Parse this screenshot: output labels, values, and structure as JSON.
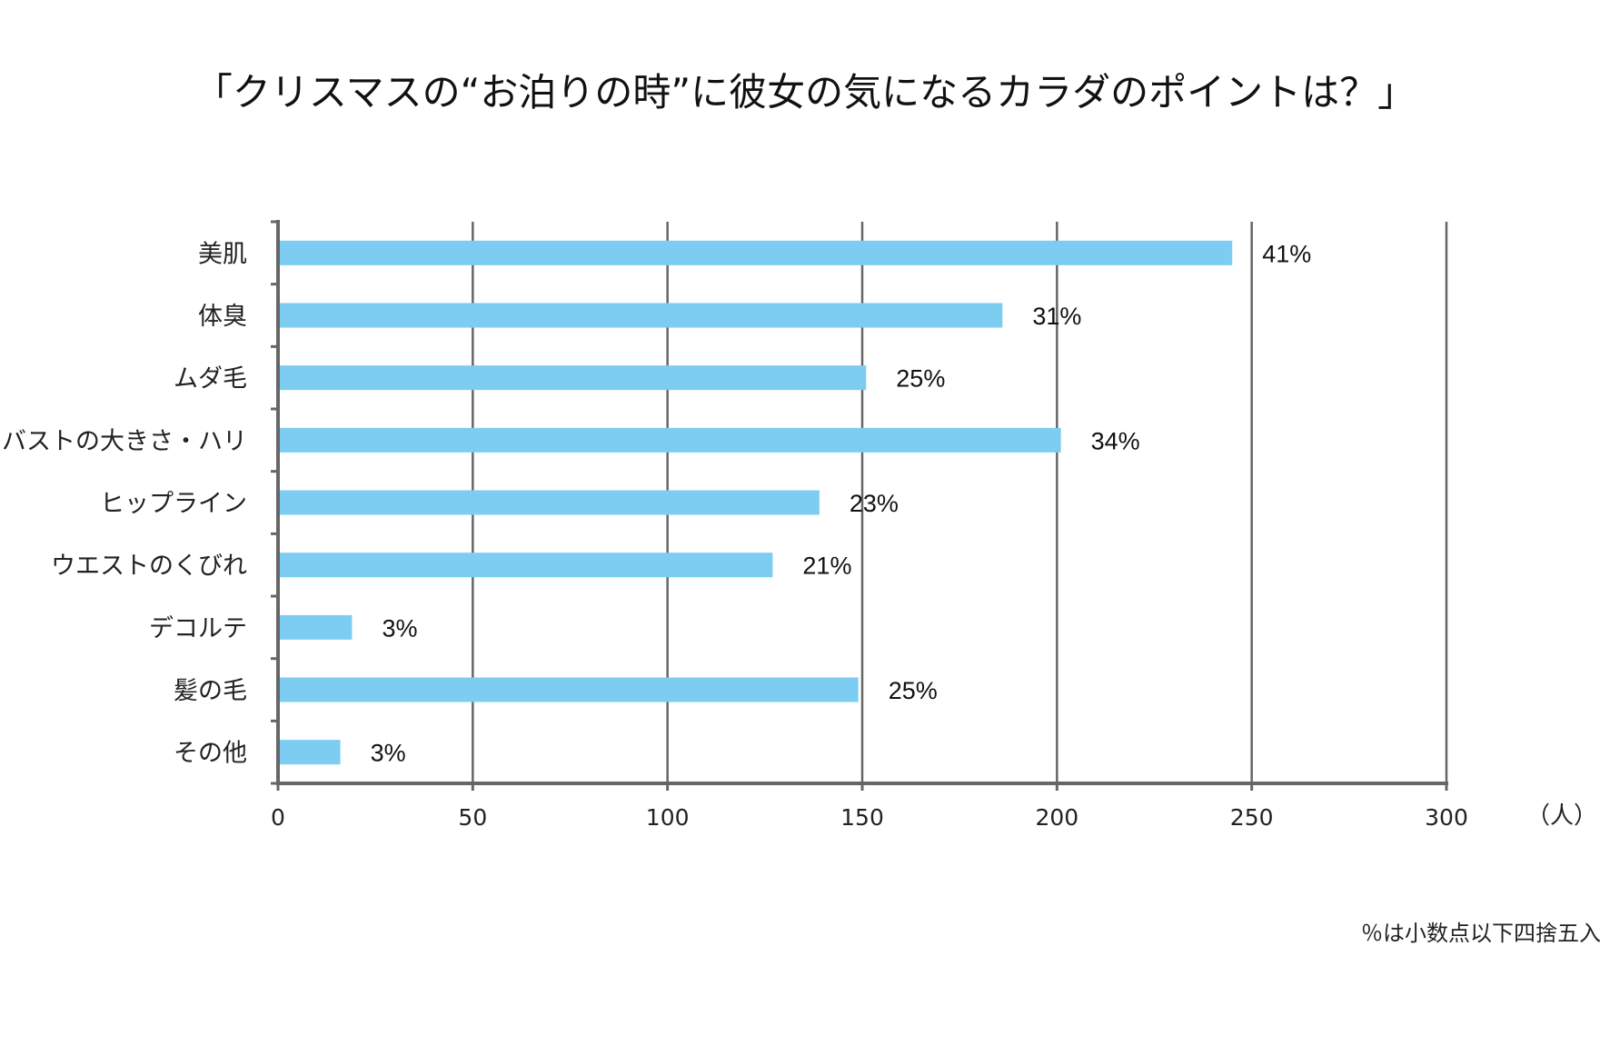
{
  "chart_data": {
    "type": "bar",
    "orientation": "horizontal",
    "title": "「クリスマスの“お泊りの時”に彼女の気になるカラダのポイントは？」",
    "categories": [
      "美肌",
      "体臭",
      "ムダ毛",
      "バストの大きさ・ハリ",
      "ヒップライン",
      "ウエストのくびれ",
      "デコルテ",
      "髪の毛",
      "その他"
    ],
    "values": [
      245,
      186,
      151,
      201,
      139,
      127,
      19,
      149,
      16
    ],
    "value_labels": [
      "41%",
      "31%",
      "25%",
      "34%",
      "23%",
      "21%",
      "3%",
      "25%",
      "3%"
    ],
    "x_ticks": [
      "0",
      "50",
      "100",
      "150",
      "200",
      "250",
      "300"
    ],
    "xlim": [
      0,
      300
    ],
    "x_unit": "（人）",
    "grid": true,
    "bar_color": "#7dcdf3",
    "grid_color": "#666666",
    "note": "％は小数点以下四捨五入"
  }
}
